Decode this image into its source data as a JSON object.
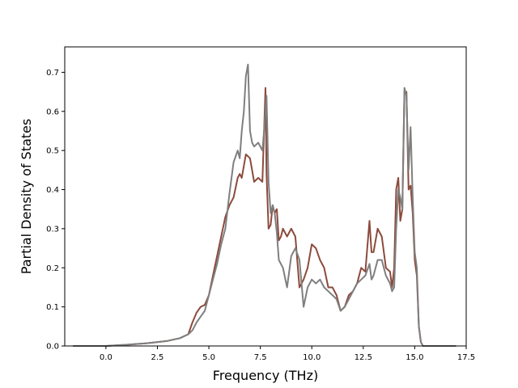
{
  "chart_data": {
    "type": "line",
    "title": "",
    "xlabel": "Frequency (THz)",
    "ylabel": "Partial Density of States",
    "xlim": [
      -2.0,
      17.5
    ],
    "ylim": [
      0.0,
      0.765
    ],
    "xticks": [
      0.0,
      2.5,
      5.0,
      7.5,
      10.0,
      12.5,
      15.0,
      17.5
    ],
    "xtick_labels": [
      "0.0",
      "2.5",
      "5.0",
      "7.5",
      "10.0",
      "12.5",
      "15.0",
      "17.5"
    ],
    "yticks": [
      0.0,
      0.1,
      0.2,
      0.3,
      0.4,
      0.5,
      0.6,
      0.7
    ],
    "ytick_labels": [
      "0.0",
      "0.1",
      "0.2",
      "0.3",
      "0.4",
      "0.5",
      "0.6",
      "0.7"
    ],
    "grid": false,
    "legend": "none",
    "series": [
      {
        "color": "#8c4a3c",
        "x": [
          -1.6,
          0.0,
          1.0,
          2.0,
          3.0,
          3.6,
          4.0,
          4.2,
          4.4,
          4.6,
          4.8,
          5.0,
          5.2,
          5.4,
          5.6,
          5.8,
          6.0,
          6.2,
          6.4,
          6.5,
          6.6,
          6.8,
          7.0,
          7.2,
          7.4,
          7.6,
          7.75,
          7.8,
          7.9,
          8.0,
          8.1,
          8.2,
          8.3,
          8.4,
          8.5,
          8.6,
          8.8,
          9.0,
          9.2,
          9.4,
          9.6,
          9.8,
          10.0,
          10.2,
          10.4,
          10.6,
          10.8,
          11.0,
          11.2,
          11.4,
          11.6,
          11.8,
          12.0,
          12.2,
          12.4,
          12.6,
          12.8,
          12.9,
          13.0,
          13.2,
          13.4,
          13.6,
          13.8,
          13.9,
          14.0,
          14.1,
          14.2,
          14.3,
          14.4,
          14.5,
          14.6,
          14.7,
          14.8,
          14.9,
          15.0,
          15.1,
          15.2,
          15.3,
          15.4,
          15.6,
          17.0
        ],
        "y": [
          0.0,
          0.0,
          0.003,
          0.007,
          0.013,
          0.02,
          0.03,
          0.06,
          0.085,
          0.1,
          0.105,
          0.13,
          0.18,
          0.23,
          0.28,
          0.33,
          0.36,
          0.38,
          0.43,
          0.44,
          0.43,
          0.49,
          0.48,
          0.42,
          0.43,
          0.42,
          0.66,
          0.44,
          0.3,
          0.31,
          0.36,
          0.34,
          0.35,
          0.27,
          0.28,
          0.3,
          0.28,
          0.3,
          0.28,
          0.15,
          0.17,
          0.2,
          0.26,
          0.25,
          0.22,
          0.2,
          0.15,
          0.15,
          0.13,
          0.09,
          0.1,
          0.13,
          0.14,
          0.16,
          0.2,
          0.19,
          0.32,
          0.24,
          0.24,
          0.3,
          0.28,
          0.2,
          0.19,
          0.15,
          0.2,
          0.4,
          0.43,
          0.32,
          0.35,
          0.65,
          0.65,
          0.4,
          0.41,
          0.34,
          0.22,
          0.18,
          0.05,
          0.01,
          0.0,
          0.0,
          0.0
        ]
      },
      {
        "color": "#7f7f7f",
        "x": [
          -1.6,
          0.0,
          1.0,
          2.0,
          3.0,
          3.6,
          4.0,
          4.2,
          4.4,
          4.6,
          4.8,
          5.0,
          5.2,
          5.4,
          5.6,
          5.8,
          6.0,
          6.2,
          6.4,
          6.5,
          6.6,
          6.7,
          6.8,
          6.9,
          7.0,
          7.1,
          7.2,
          7.4,
          7.6,
          7.7,
          7.8,
          7.9,
          8.0,
          8.1,
          8.2,
          8.3,
          8.4,
          8.6,
          8.8,
          9.0,
          9.2,
          9.4,
          9.6,
          9.8,
          10.0,
          10.2,
          10.4,
          10.6,
          10.8,
          11.0,
          11.2,
          11.4,
          11.6,
          11.8,
          12.0,
          12.2,
          12.4,
          12.6,
          12.8,
          12.9,
          13.0,
          13.2,
          13.4,
          13.6,
          13.8,
          13.9,
          14.0,
          14.1,
          14.2,
          14.3,
          14.4,
          14.5,
          14.6,
          14.7,
          14.8,
          14.9,
          15.0,
          15.1,
          15.2,
          15.3,
          15.4,
          15.6,
          17.0
        ],
        "y": [
          0.0,
          0.0,
          0.003,
          0.007,
          0.013,
          0.02,
          0.03,
          0.04,
          0.06,
          0.075,
          0.09,
          0.13,
          0.17,
          0.21,
          0.26,
          0.3,
          0.39,
          0.47,
          0.5,
          0.48,
          0.55,
          0.6,
          0.69,
          0.72,
          0.55,
          0.52,
          0.51,
          0.52,
          0.5,
          0.56,
          0.64,
          0.42,
          0.34,
          0.36,
          0.34,
          0.29,
          0.22,
          0.2,
          0.15,
          0.23,
          0.25,
          0.22,
          0.1,
          0.15,
          0.17,
          0.16,
          0.17,
          0.15,
          0.14,
          0.13,
          0.12,
          0.09,
          0.1,
          0.12,
          0.14,
          0.16,
          0.17,
          0.18,
          0.21,
          0.17,
          0.18,
          0.22,
          0.22,
          0.18,
          0.16,
          0.14,
          0.15,
          0.3,
          0.4,
          0.38,
          0.35,
          0.66,
          0.64,
          0.45,
          0.56,
          0.38,
          0.24,
          0.2,
          0.05,
          0.01,
          0.0,
          0.0,
          0.0
        ]
      }
    ]
  }
}
